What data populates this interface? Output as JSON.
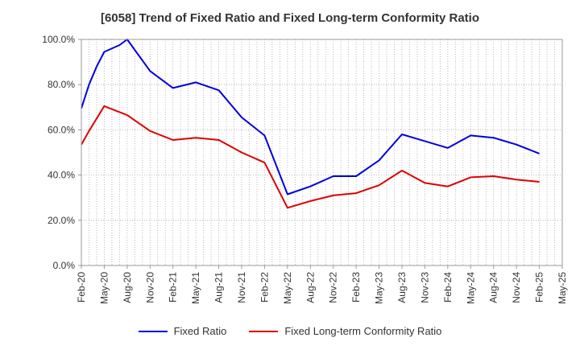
{
  "chart_data": {
    "type": "line",
    "title": "[6058]  Trend of Fixed Ratio and Fixed Long-term Conformity Ratio",
    "xlabel": "",
    "ylabel": "",
    "ylim": [
      0,
      100
    ],
    "y_ticks": [
      "0.0%",
      "20.0%",
      "40.0%",
      "60.0%",
      "80.0%",
      "100.0%"
    ],
    "x_ticks": [
      "Feb-20",
      "May-20",
      "Aug-20",
      "Nov-20",
      "Feb-21",
      "May-21",
      "Aug-21",
      "Nov-21",
      "Feb-22",
      "May-22",
      "Aug-22",
      "Nov-22",
      "Feb-23",
      "May-23",
      "Aug-23",
      "Nov-23",
      "Feb-24",
      "May-24",
      "Aug-24",
      "Nov-24",
      "Feb-25",
      "May-25"
    ],
    "grid": true,
    "legend_position": "bottom",
    "series": [
      {
        "name": "Fixed Ratio",
        "color": "#0000dd",
        "points": [
          [
            "Feb-20",
            69.5
          ],
          [
            "Mar-20",
            80
          ],
          [
            "Apr-20",
            88
          ],
          [
            "May-20",
            94.5
          ],
          [
            "Jul-20",
            97.5
          ],
          [
            "Aug-20",
            100
          ],
          [
            "Nov-20",
            86
          ],
          [
            "Feb-21",
            78.5
          ],
          [
            "May-21",
            81
          ],
          [
            "Aug-21",
            77.5
          ],
          [
            "Nov-21",
            65.5
          ],
          [
            "Feb-22",
            57.5
          ],
          [
            "May-22",
            31.5
          ],
          [
            "Aug-22",
            35
          ],
          [
            "Nov-22",
            39.5
          ],
          [
            "Feb-23",
            39.5
          ],
          [
            "May-23",
            46.5
          ],
          [
            "Aug-23",
            58
          ],
          [
            "Nov-23",
            55
          ],
          [
            "Feb-24",
            52
          ],
          [
            "May-24",
            57.5
          ],
          [
            "Aug-24",
            56.5
          ],
          [
            "Nov-24",
            53.5
          ],
          [
            "Feb-25",
            49.5
          ]
        ]
      },
      {
        "name": "Fixed Long-term Conformity Ratio",
        "color": "#dd0000",
        "points": [
          [
            "Feb-20",
            53.5
          ],
          [
            "Mar-20",
            59.5
          ],
          [
            "Apr-20",
            65
          ],
          [
            "May-20",
            70.5
          ],
          [
            "Aug-20",
            66.5
          ],
          [
            "Nov-20",
            59.5
          ],
          [
            "Feb-21",
            55.5
          ],
          [
            "May-21",
            56.5
          ],
          [
            "Aug-21",
            55.5
          ],
          [
            "Nov-21",
            50
          ],
          [
            "Feb-22",
            45.5
          ],
          [
            "May-22",
            25.5
          ],
          [
            "Aug-22",
            28.5
          ],
          [
            "Nov-22",
            31
          ],
          [
            "Feb-23",
            32
          ],
          [
            "May-23",
            35.5
          ],
          [
            "Aug-23",
            42
          ],
          [
            "Nov-23",
            36.5
          ],
          [
            "Feb-24",
            35
          ],
          [
            "May-24",
            39
          ],
          [
            "Aug-24",
            39.5
          ],
          [
            "Nov-24",
            38
          ],
          [
            "Feb-25",
            37
          ]
        ]
      }
    ]
  }
}
